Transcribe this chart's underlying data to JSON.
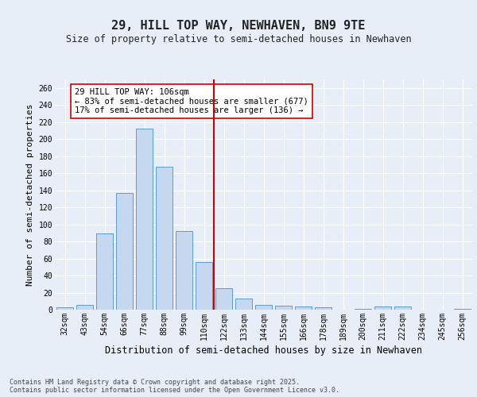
{
  "title": "29, HILL TOP WAY, NEWHAVEN, BN9 9TE",
  "subtitle": "Size of property relative to semi-detached houses in Newhaven",
  "xlabel": "Distribution of semi-detached houses by size in Newhaven",
  "ylabel": "Number of semi-detached properties",
  "categories": [
    "32sqm",
    "43sqm",
    "54sqm",
    "66sqm",
    "77sqm",
    "88sqm",
    "99sqm",
    "110sqm",
    "122sqm",
    "133sqm",
    "144sqm",
    "155sqm",
    "166sqm",
    "178sqm",
    "189sqm",
    "200sqm",
    "211sqm",
    "222sqm",
    "234sqm",
    "245sqm",
    "256sqm"
  ],
  "values": [
    3,
    6,
    89,
    137,
    212,
    168,
    92,
    56,
    25,
    13,
    6,
    5,
    4,
    3,
    0,
    1,
    4,
    4,
    0,
    0,
    1
  ],
  "bar_color": "#c5d8f0",
  "bar_edge_color": "#5b9bd5",
  "vline_color": "#cc0000",
  "annotation_text": "29 HILL TOP WAY: 106sqm\n← 83% of semi-detached houses are smaller (677)\n17% of semi-detached houses are larger (136) →",
  "annotation_box_color": "#ffffff",
  "annotation_box_edge": "#cc0000",
  "ylim": [
    0,
    270
  ],
  "yticks": [
    0,
    20,
    40,
    60,
    80,
    100,
    120,
    140,
    160,
    180,
    200,
    220,
    240,
    260
  ],
  "background_color": "#e8eef8",
  "footer_line1": "Contains HM Land Registry data © Crown copyright and database right 2025.",
  "footer_line2": "Contains public sector information licensed under the Open Government Licence v3.0.",
  "title_fontsize": 11,
  "subtitle_fontsize": 8.5,
  "axis_label_fontsize": 8,
  "tick_fontsize": 7,
  "annotation_fontsize": 7.5,
  "footer_fontsize": 6
}
